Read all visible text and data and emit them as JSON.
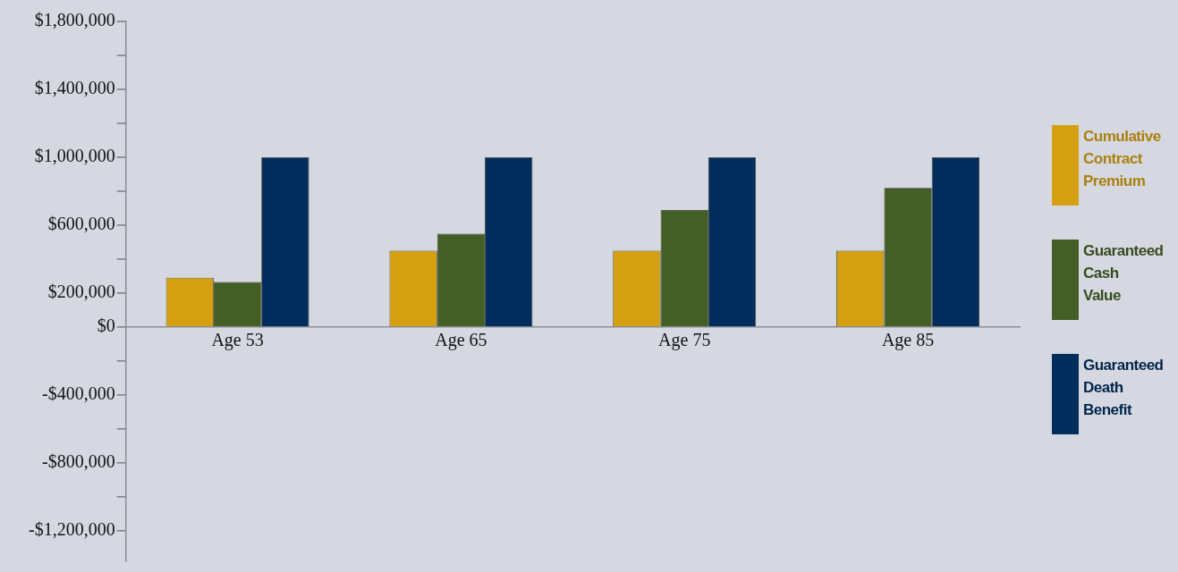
{
  "chart_data": {
    "type": "bar",
    "categories": [
      "Age 53",
      "Age 65",
      "Age 75",
      "Age 85"
    ],
    "series": [
      {
        "name": "Cumulative Contract Premium",
        "color": "#d4a012",
        "values": [
          290000,
          450000,
          450000,
          450000
        ]
      },
      {
        "name": "Guaranteed Cash Value",
        "color": "#435f26",
        "values": [
          265000,
          550000,
          690000,
          820000
        ]
      },
      {
        "name": "Guaranteed Death Benefit",
        "color": "#002d5c",
        "values": [
          1000000,
          1000000,
          1000000,
          1000000
        ]
      }
    ],
    "ylim": [
      -1380000,
      1800000
    ],
    "yticks": [
      {
        "value": 1800000,
        "label": "$1,800,000"
      },
      {
        "value": 1600000,
        "label": null
      },
      {
        "value": 1400000,
        "label": "$1,400,000"
      },
      {
        "value": 1200000,
        "label": null
      },
      {
        "value": 1000000,
        "label": "$1,000,000"
      },
      {
        "value": 800000,
        "label": null
      },
      {
        "value": 600000,
        "label": "$600,000"
      },
      {
        "value": 400000,
        "label": null
      },
      {
        "value": 200000,
        "label": "$200,000"
      },
      {
        "value": 0,
        "label": "$0"
      },
      {
        "value": -200000,
        "label": null
      },
      {
        "value": -400000,
        "label": "-$400,000"
      },
      {
        "value": -600000,
        "label": null
      },
      {
        "value": -800000,
        "label": "-$800,000"
      },
      {
        "value": -1000000,
        "label": null
      },
      {
        "value": -1200000,
        "label": "-$1,200,000"
      }
    ],
    "grid": false,
    "legend": "right"
  }
}
